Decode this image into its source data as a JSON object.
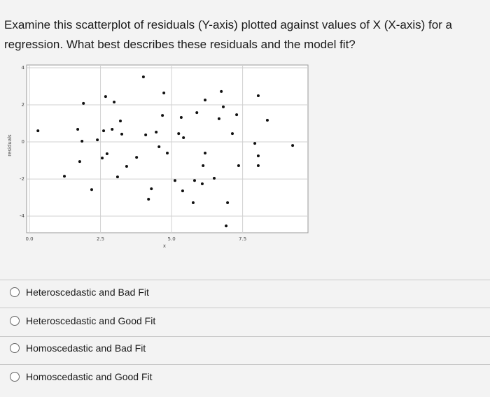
{
  "question_lines": [
    "Examine this scatterplot of residuals (Y-axis) plotted against values of X (X-axis) for a",
    "regression. What best describes these residuals and the model fit?"
  ],
  "chart_data": {
    "type": "scatter",
    "x_label": "x",
    "y_label": "residuals",
    "color": "#111111",
    "grid": true,
    "xlim": [
      -0.1,
      9.8
    ],
    "ylim": [
      -4.9,
      4.15
    ],
    "xticks": [
      {
        "value": 0,
        "label": "0.0"
      },
      2.5,
      {
        "value": 5,
        "label": "5.0"
      },
      7.5
    ],
    "yticks": [
      4,
      2,
      0,
      -2,
      -4
    ],
    "x": [
      4.01,
      1.9,
      2.68,
      2.98,
      4.73,
      6.75,
      8.05,
      6.18,
      6.82,
      5.89,
      7.29,
      6.67,
      3.2,
      5.34,
      4.68,
      0.3,
      1.7,
      2.61,
      2.91,
      3.25,
      4.09,
      4.46,
      5.25,
      5.42,
      7.14,
      2.39,
      1.85,
      8.37,
      9.26,
      7.93,
      4.56,
      2.73,
      2.56,
      3.77,
      4.85,
      6.18,
      8.05,
      8.05,
      1.77,
      3.42,
      6.11,
      7.36,
      3.1,
      1.23,
      5.12,
      5.81,
      6.08,
      6.5,
      4.29,
      5.39,
      2.19,
      4.19,
      5.76,
      6.97,
      6.92
    ],
    "values": [
      3.51,
      2.08,
      2.45,
      2.15,
      2.64,
      2.72,
      2.49,
      2.26,
      1.89,
      1.58,
      1.47,
      1.25,
      1.13,
      1.32,
      1.43,
      0.6,
      0.68,
      0.6,
      0.68,
      0.42,
      0.38,
      0.53,
      0.45,
      0.23,
      0.45,
      0.11,
      0.04,
      1.17,
      -0.19,
      -0.08,
      -0.26,
      -0.64,
      -0.87,
      -0.83,
      -0.6,
      -0.6,
      -0.75,
      -1.28,
      -1.06,
      -1.32,
      -1.28,
      -1.28,
      -1.89,
      -1.85,
      -2.08,
      -2.08,
      -2.26,
      -1.96,
      -2.53,
      -2.64,
      -2.57,
      -3.09,
      -3.28,
      -3.28,
      -4.53
    ]
  },
  "options": [
    "Heteroscedastic and Bad Fit",
    "Heteroscedastic and Good Fit",
    "Homoscedastic and Bad Fit",
    "Homoscedastic and Good Fit"
  ]
}
